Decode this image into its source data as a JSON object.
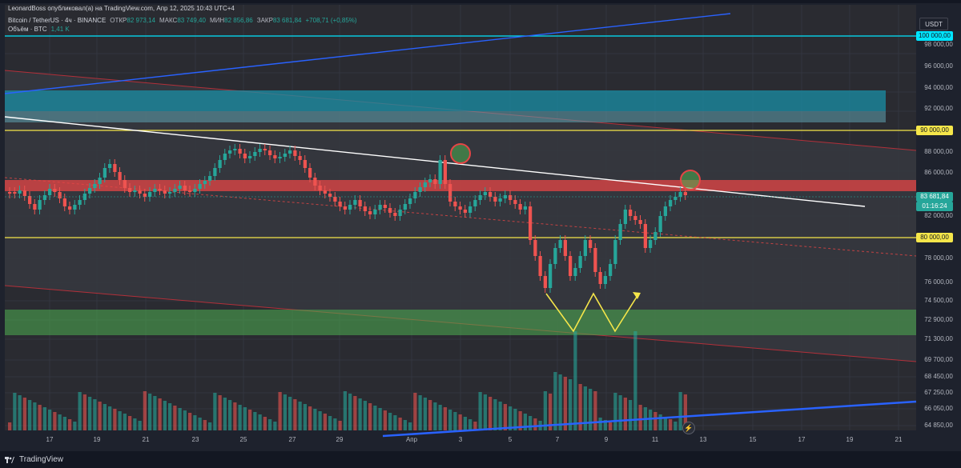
{
  "publisher_line": "LeonardBoss опубликовал(а) на TradingView.com, Апр 12, 2025 10:43 UTC+4",
  "symbol": {
    "name": "Bitcoin / TetherUS · 4ч · BINANCE",
    "open_label": "ОТКР",
    "open": "82 973,14",
    "high_label": "МАКС",
    "high": "83 749,40",
    "low_label": "МИН",
    "low": "82 856,86",
    "close_label": "ЗАКР",
    "close": "83 681,84",
    "change": "+708,71 (+0,85%)"
  },
  "volume": {
    "label": "Объём · BTC",
    "value": "1,41 K"
  },
  "currency_button": "USDT",
  "price_ticks": [
    {
      "label": "98 000,00",
      "price": 98000
    },
    {
      "label": "96 000,00",
      "price": 96000
    },
    {
      "label": "94 000,00",
      "price": 94000
    },
    {
      "label": "92 000,00",
      "price": 92000
    },
    {
      "label": "88 000,00",
      "price": 88000
    },
    {
      "label": "86 000,00",
      "price": 86000
    },
    {
      "label": "82 000,00",
      "price": 82000
    },
    {
      "label": "78 000,00",
      "price": 78000
    },
    {
      "label": "76 000,00",
      "price": 76000
    },
    {
      "label": "74 500,00",
      "price": 74500
    },
    {
      "label": "72 900,00",
      "price": 72900
    },
    {
      "label": "71 300,00",
      "price": 71300
    },
    {
      "label": "69 700,00",
      "price": 69700
    },
    {
      "label": "68 450,00",
      "price": 68450
    },
    {
      "label": "67 250,00",
      "price": 67250
    },
    {
      "label": "66 050,00",
      "price": 66050
    },
    {
      "label": "64 850,00",
      "price": 64850
    }
  ],
  "price_tags": {
    "level_100k": "100 000,00",
    "level_90k": "90 000,00",
    "level_80k": "80 000,00",
    "current": "83 681,84",
    "countdown": "01:16:24"
  },
  "time_labels": [
    "17",
    "19",
    "21",
    "23",
    "25",
    "27",
    "29",
    "Апр",
    "3",
    "5",
    "7",
    "9",
    "11",
    "13",
    "15",
    "17",
    "19",
    "21"
  ],
  "footer_brand": "TradingView",
  "colors": {
    "up": "#26a69a",
    "down": "#ef5350",
    "level_line": "#f5e64a",
    "level_100k": "#00e5ff",
    "resistance_zone": "#e64545",
    "supply_zone": "#1a8fa6",
    "demand_zone": "#4caf50",
    "trend_blue": "#2962ff",
    "trend_white": "#ffffff"
  },
  "icons": [
    "tradingview-logo-icon",
    "flash-icon"
  ]
}
